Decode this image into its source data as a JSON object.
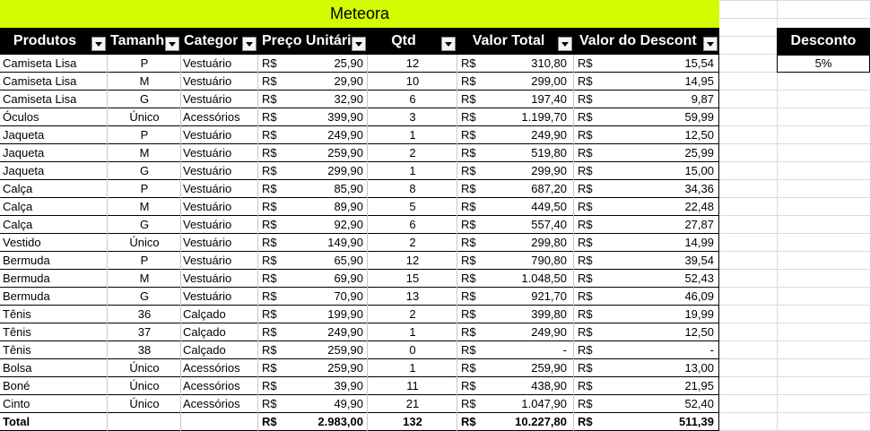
{
  "sheet": {
    "title": "Meteora",
    "headers": [
      "Produtos",
      "Tamanh",
      "Categor",
      "Preço Unitári",
      "Qtd",
      "Valor Total",
      "Valor do Descont"
    ],
    "rows": [
      [
        "Camiseta Lisa",
        "P",
        "Vestuário",
        "R$",
        "25,90",
        "12",
        "R$",
        "310,80",
        "R$",
        "15,54"
      ],
      [
        "Camiseta Lisa",
        "M",
        "Vestuário",
        "R$",
        "29,90",
        "10",
        "R$",
        "299,00",
        "R$",
        "14,95"
      ],
      [
        "Camiseta Lisa",
        "G",
        "Vestuário",
        "R$",
        "32,90",
        "6",
        "R$",
        "197,40",
        "R$",
        "9,87"
      ],
      [
        "Óculos",
        "Único",
        "Acessórios",
        "R$",
        "399,90",
        "3",
        "R$",
        "1.199,70",
        "R$",
        "59,99"
      ],
      [
        "Jaqueta",
        "P",
        "Vestuário",
        "R$",
        "249,90",
        "1",
        "R$",
        "249,90",
        "R$",
        "12,50"
      ],
      [
        "Jaqueta",
        "M",
        "Vestuário",
        "R$",
        "259,90",
        "2",
        "R$",
        "519,80",
        "R$",
        "25,99"
      ],
      [
        "Jaqueta",
        "G",
        "Vestuário",
        "R$",
        "299,90",
        "1",
        "R$",
        "299,90",
        "R$",
        "15,00"
      ],
      [
        "Calça",
        "P",
        "Vestuário",
        "R$",
        "85,90",
        "8",
        "R$",
        "687,20",
        "R$",
        "34,36"
      ],
      [
        "Calça",
        "M",
        "Vestuário",
        "R$",
        "89,90",
        "5",
        "R$",
        "449,50",
        "R$",
        "22,48"
      ],
      [
        "Calça",
        "G",
        "Vestuário",
        "R$",
        "92,90",
        "6",
        "R$",
        "557,40",
        "R$",
        "27,87"
      ],
      [
        "Vestido",
        "Único",
        "Vestuário",
        "R$",
        "149,90",
        "2",
        "R$",
        "299,80",
        "R$",
        "14,99"
      ],
      [
        "Bermuda",
        "P",
        "Vestuário",
        "R$",
        "65,90",
        "12",
        "R$",
        "790,80",
        "R$",
        "39,54"
      ],
      [
        "Bermuda",
        "M",
        "Vestuário",
        "R$",
        "69,90",
        "15",
        "R$",
        "1.048,50",
        "R$",
        "52,43"
      ],
      [
        "Bermuda",
        "G",
        "Vestuário",
        "R$",
        "70,90",
        "13",
        "R$",
        "921,70",
        "R$",
        "46,09"
      ],
      [
        "Tênis",
        "36",
        "Calçado",
        "R$",
        "199,90",
        "2",
        "R$",
        "399,80",
        "R$",
        "19,99"
      ],
      [
        "Tênis",
        "37",
        "Calçado",
        "R$",
        "249,90",
        "1",
        "R$",
        "249,90",
        "R$",
        "12,50"
      ],
      [
        "Tênis",
        "38",
        "Calçado",
        "R$",
        "259,90",
        "0",
        "R$",
        "-",
        "R$",
        "-"
      ],
      [
        "Bolsa",
        "Único",
        "Acessórios",
        "R$",
        "259,90",
        "1",
        "R$",
        "259,90",
        "R$",
        "13,00"
      ],
      [
        "Boné",
        "Único",
        "Acessórios",
        "R$",
        "39,90",
        "11",
        "R$",
        "438,90",
        "R$",
        "21,95"
      ],
      [
        "Cinto",
        "Único",
        "Acessórios",
        "R$",
        "49,90",
        "21",
        "R$",
        "1.047,90",
        "R$",
        "52,40"
      ]
    ],
    "total": [
      "Total",
      null,
      null,
      "R$",
      "2.983,00",
      "132",
      "R$",
      "10.227,80",
      "R$",
      "511,39"
    ],
    "discount": {
      "header": "Desconto",
      "value": "5%"
    }
  }
}
